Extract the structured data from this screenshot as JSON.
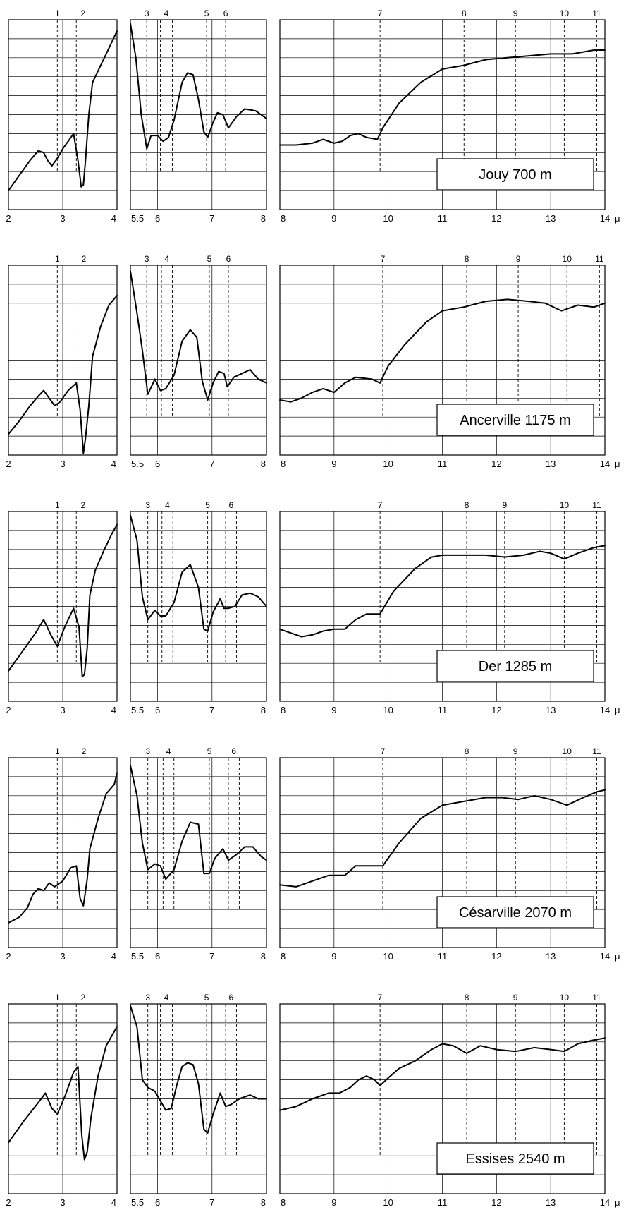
{
  "unit": "μ",
  "colors": {
    "ink": "#000000",
    "background": "#ffffff"
  },
  "chart_data": [
    {
      "type": "line",
      "title": "Jouy 700 m",
      "xlim": [
        2,
        14
      ],
      "ylim": [
        0,
        10
      ],
      "grid": true,
      "legend": "none",
      "band_markers": [
        {
          "label": "1",
          "x": 2.9
        },
        {
          "label": "2",
          "x": [
            3.25,
            3.5
          ]
        },
        {
          "label": "3",
          "x": 5.8
        },
        {
          "label": "4",
          "x": [
            6.05,
            6.27
          ]
        },
        {
          "label": "5",
          "x": 6.9
        },
        {
          "label": "6",
          "x": 7.25
        },
        {
          "label": "7",
          "x": 9.85
        },
        {
          "label": "8",
          "x": 11.4
        },
        {
          "label": "9",
          "x": 12.35
        },
        {
          "label": "10",
          "x": 13.25
        },
        {
          "label": "11",
          "x": 13.85
        }
      ],
      "series": [
        {
          "x": [
            2.0,
            2.2,
            2.4,
            2.55,
            2.65,
            2.72,
            2.8,
            2.9,
            3.0,
            3.1,
            3.2,
            3.28,
            3.34,
            3.38,
            3.42,
            3.48,
            3.55,
            3.7,
            3.85,
            4.0
          ],
          "y": [
            1.0,
            1.8,
            2.6,
            3.1,
            3.0,
            2.6,
            2.3,
            2.7,
            3.2,
            3.6,
            4.0,
            2.6,
            1.2,
            1.3,
            2.6,
            5.0,
            6.7,
            7.6,
            8.5,
            9.4
          ]
        },
        {
          "x": [
            5.5,
            5.6,
            5.7,
            5.8,
            5.88,
            6.0,
            6.1,
            6.2,
            6.3,
            6.45,
            6.55,
            6.65,
            6.75,
            6.85,
            6.92,
            7.02,
            7.1,
            7.2,
            7.3,
            7.45,
            7.6,
            7.8,
            8.0
          ],
          "y": [
            9.8,
            8.0,
            5.0,
            3.2,
            3.9,
            3.9,
            3.6,
            3.8,
            4.7,
            6.7,
            7.2,
            7.1,
            5.8,
            4.1,
            3.8,
            4.6,
            5.1,
            5.0,
            4.3,
            4.9,
            5.3,
            5.2,
            4.8
          ]
        },
        {
          "x": [
            8.0,
            8.3,
            8.6,
            8.8,
            9.0,
            9.15,
            9.3,
            9.45,
            9.6,
            9.8,
            9.9,
            10.2,
            10.6,
            11.0,
            11.4,
            11.8,
            12.2,
            12.6,
            13.0,
            13.4,
            13.8,
            14.0
          ],
          "y": [
            3.4,
            3.4,
            3.5,
            3.7,
            3.5,
            3.6,
            3.9,
            4.0,
            3.8,
            3.7,
            4.3,
            5.6,
            6.7,
            7.4,
            7.6,
            7.9,
            8.0,
            8.1,
            8.2,
            8.2,
            8.4,
            8.4
          ]
        }
      ]
    },
    {
      "type": "line",
      "title": "Ancerville 1175 m",
      "xlim": [
        2,
        14
      ],
      "ylim": [
        0,
        10
      ],
      "grid": true,
      "legend": "none",
      "band_markers": [
        {
          "label": "1",
          "x": 2.9
        },
        {
          "label": "2",
          "x": [
            3.28,
            3.5
          ]
        },
        {
          "label": "3",
          "x": 5.8
        },
        {
          "label": "4",
          "x": [
            6.07,
            6.27
          ]
        },
        {
          "label": "5",
          "x": 6.95
        },
        {
          "label": "6",
          "x": 7.3
        },
        {
          "label": "7",
          "x": 9.9
        },
        {
          "label": "8",
          "x": 11.45
        },
        {
          "label": "9",
          "x": 12.4
        },
        {
          "label": "10",
          "x": 13.3
        },
        {
          "label": "11",
          "x": 13.9
        }
      ],
      "series": [
        {
          "x": [
            2.0,
            2.2,
            2.4,
            2.55,
            2.65,
            2.75,
            2.85,
            2.95,
            3.1,
            3.25,
            3.32,
            3.38,
            3.42,
            3.48,
            3.55,
            3.7,
            3.85,
            4.0
          ],
          "y": [
            1.1,
            1.8,
            2.6,
            3.1,
            3.4,
            3.0,
            2.6,
            2.8,
            3.4,
            3.8,
            2.4,
            0.1,
            0.9,
            2.6,
            5.2,
            6.8,
            7.9,
            8.4
          ]
        },
        {
          "x": [
            5.5,
            5.62,
            5.72,
            5.82,
            5.95,
            6.05,
            6.15,
            6.3,
            6.45,
            6.6,
            6.72,
            6.82,
            6.92,
            7.02,
            7.12,
            7.22,
            7.28,
            7.4,
            7.55,
            7.7,
            7.85,
            8.0
          ],
          "y": [
            9.7,
            7.5,
            5.5,
            3.2,
            4.0,
            3.4,
            3.5,
            4.2,
            6.0,
            6.6,
            6.2,
            3.9,
            2.9,
            3.8,
            4.4,
            4.3,
            3.6,
            4.1,
            4.3,
            4.5,
            4.0,
            3.8
          ]
        },
        {
          "x": [
            8.0,
            8.2,
            8.4,
            8.6,
            8.8,
            9.0,
            9.2,
            9.4,
            9.7,
            9.85,
            10.0,
            10.3,
            10.7,
            11.0,
            11.4,
            11.8,
            12.2,
            12.6,
            12.9,
            13.2,
            13.5,
            13.8,
            14.0
          ],
          "y": [
            2.9,
            2.8,
            3.0,
            3.3,
            3.5,
            3.3,
            3.8,
            4.1,
            4.0,
            3.8,
            4.7,
            5.8,
            7.0,
            7.6,
            7.8,
            8.1,
            8.2,
            8.1,
            8.0,
            7.6,
            7.9,
            7.8,
            8.0
          ]
        }
      ]
    },
    {
      "type": "line",
      "title": "Der 1285 m",
      "xlim": [
        2,
        14
      ],
      "ylim": [
        0,
        10
      ],
      "grid": true,
      "legend": "none",
      "band_markers": [
        {
          "label": "1",
          "x": 2.9
        },
        {
          "label": "2",
          "x": [
            3.25,
            3.5
          ]
        },
        {
          "label": "3",
          "x": 5.82
        },
        {
          "label": "4",
          "x": [
            6.08,
            6.28
          ]
        },
        {
          "label": "5",
          "x": 6.92
        },
        {
          "label": "6",
          "x": [
            7.25,
            7.45
          ]
        },
        {
          "label": "7",
          "x": 9.85
        },
        {
          "label": "8",
          "x": 11.45
        },
        {
          "label": "9",
          "x": 12.15
        },
        {
          "label": "10",
          "x": 13.25
        },
        {
          "label": "11",
          "x": 13.85
        }
      ],
      "series": [
        {
          "x": [
            2.0,
            2.25,
            2.5,
            2.65,
            2.78,
            2.9,
            3.05,
            3.2,
            3.3,
            3.36,
            3.4,
            3.45,
            3.5,
            3.6,
            3.75,
            3.9,
            4.0
          ],
          "y": [
            1.6,
            2.6,
            3.6,
            4.3,
            3.5,
            2.9,
            4.0,
            4.9,
            3.9,
            1.3,
            1.4,
            2.8,
            5.6,
            6.9,
            7.9,
            8.8,
            9.3
          ]
        },
        {
          "x": [
            5.5,
            5.62,
            5.72,
            5.82,
            5.95,
            6.05,
            6.15,
            6.3,
            6.45,
            6.6,
            6.75,
            6.85,
            6.92,
            7.02,
            7.15,
            7.22,
            7.3,
            7.42,
            7.55,
            7.7,
            7.85,
            8.0
          ],
          "y": [
            9.8,
            8.5,
            5.5,
            4.3,
            4.8,
            4.5,
            4.5,
            5.2,
            6.8,
            7.2,
            6.0,
            3.8,
            3.7,
            4.7,
            5.4,
            4.9,
            4.9,
            5.0,
            5.6,
            5.7,
            5.5,
            5.0
          ]
        },
        {
          "x": [
            8.0,
            8.2,
            8.4,
            8.6,
            8.8,
            9.0,
            9.2,
            9.4,
            9.6,
            9.85,
            10.1,
            10.5,
            10.8,
            11.0,
            11.4,
            11.8,
            12.15,
            12.5,
            12.8,
            13.0,
            13.25,
            13.5,
            13.8,
            14.0
          ],
          "y": [
            3.8,
            3.6,
            3.4,
            3.5,
            3.7,
            3.8,
            3.8,
            4.3,
            4.6,
            4.6,
            5.8,
            7.0,
            7.6,
            7.7,
            7.7,
            7.7,
            7.6,
            7.7,
            7.9,
            7.8,
            7.5,
            7.8,
            8.1,
            8.2
          ]
        }
      ]
    },
    {
      "type": "line",
      "title": "Césarville 2070 m",
      "xlim": [
        2,
        14
      ],
      "ylim": [
        0,
        10
      ],
      "grid": true,
      "legend": "none",
      "band_markers": [
        {
          "label": "1",
          "x": 2.9
        },
        {
          "label": "2",
          "x": [
            3.28,
            3.5
          ]
        },
        {
          "label": "3",
          "x": 5.82
        },
        {
          "label": "4",
          "x": [
            6.1,
            6.3
          ]
        },
        {
          "label": "5",
          "x": 6.95
        },
        {
          "label": "6",
          "x": [
            7.3,
            7.5
          ]
        },
        {
          "label": "7",
          "x": 9.9
        },
        {
          "label": "8",
          "x": 11.45
        },
        {
          "label": "9",
          "x": 12.35
        },
        {
          "label": "10",
          "x": 13.3
        },
        {
          "label": "11",
          "x": 13.85
        }
      ],
      "series": [
        {
          "x": [
            2.0,
            2.2,
            2.35,
            2.45,
            2.55,
            2.65,
            2.75,
            2.85,
            3.0,
            3.15,
            3.25,
            3.32,
            3.38,
            3.45,
            3.5,
            3.65,
            3.8,
            3.95,
            4.0
          ],
          "y": [
            1.3,
            1.6,
            2.1,
            2.8,
            3.1,
            3.0,
            3.4,
            3.2,
            3.5,
            4.2,
            4.3,
            2.6,
            2.2,
            3.6,
            5.2,
            6.8,
            8.1,
            8.6,
            9.2
          ]
        },
        {
          "x": [
            5.5,
            5.62,
            5.72,
            5.82,
            5.95,
            6.05,
            6.15,
            6.3,
            6.45,
            6.6,
            6.75,
            6.85,
            6.95,
            7.05,
            7.2,
            7.3,
            7.45,
            7.6,
            7.75,
            7.9,
            8.0
          ],
          "y": [
            9.6,
            8.0,
            5.5,
            4.1,
            4.4,
            4.3,
            3.6,
            4.1,
            5.6,
            6.6,
            6.5,
            3.9,
            3.9,
            4.7,
            5.2,
            4.6,
            4.9,
            5.3,
            5.3,
            4.8,
            4.6
          ]
        },
        {
          "x": [
            8.0,
            8.3,
            8.6,
            8.9,
            9.2,
            9.4,
            9.7,
            9.9,
            10.2,
            10.6,
            11.0,
            11.4,
            11.8,
            12.1,
            12.4,
            12.7,
            13.0,
            13.3,
            13.6,
            13.85,
            14.0
          ],
          "y": [
            3.3,
            3.2,
            3.5,
            3.8,
            3.8,
            4.3,
            4.3,
            4.3,
            5.5,
            6.8,
            7.5,
            7.7,
            7.9,
            7.9,
            7.8,
            8.0,
            7.8,
            7.5,
            7.9,
            8.2,
            8.3
          ]
        }
      ]
    },
    {
      "type": "line",
      "title": "Essises 2540 m",
      "xlim": [
        2,
        14
      ],
      "ylim": [
        0,
        10
      ],
      "grid": true,
      "legend": "none",
      "band_markers": [
        {
          "label": "1",
          "x": 2.9
        },
        {
          "label": "2",
          "x": [
            3.25,
            3.5
          ]
        },
        {
          "label": "3",
          "x": 5.82
        },
        {
          "label": "4",
          "x": [
            6.05,
            6.27
          ]
        },
        {
          "label": "5",
          "x": 6.9
        },
        {
          "label": "6",
          "x": [
            7.25,
            7.45
          ]
        },
        {
          "label": "7",
          "x": 9.85
        },
        {
          "label": "8",
          "x": 11.45
        },
        {
          "label": "9",
          "x": 12.35
        },
        {
          "label": "10",
          "x": 13.25
        },
        {
          "label": "11",
          "x": 13.85
        }
      ],
      "series": [
        {
          "x": [
            2.0,
            2.3,
            2.55,
            2.68,
            2.8,
            2.9,
            3.05,
            3.2,
            3.28,
            3.35,
            3.4,
            3.45,
            3.52,
            3.65,
            3.8,
            4.0
          ],
          "y": [
            2.7,
            3.9,
            4.8,
            5.3,
            4.5,
            4.2,
            5.2,
            6.4,
            6.7,
            3.1,
            1.8,
            2.2,
            4.0,
            6.2,
            7.8,
            8.8
          ]
        },
        {
          "x": [
            5.5,
            5.62,
            5.72,
            5.82,
            5.95,
            6.05,
            6.15,
            6.25,
            6.35,
            6.45,
            6.55,
            6.65,
            6.75,
            6.85,
            6.92,
            7.02,
            7.15,
            7.25,
            7.35,
            7.5,
            7.7,
            7.85,
            8.0
          ],
          "y": [
            9.9,
            8.8,
            6.0,
            5.6,
            5.4,
            4.9,
            4.4,
            4.5,
            5.7,
            6.7,
            6.9,
            6.8,
            5.8,
            3.4,
            3.2,
            4.2,
            5.3,
            4.6,
            4.7,
            5.0,
            5.2,
            5.0,
            5.0
          ]
        },
        {
          "x": [
            8.0,
            8.3,
            8.6,
            8.9,
            9.1,
            9.3,
            9.45,
            9.6,
            9.75,
            9.85,
            10.0,
            10.2,
            10.5,
            10.8,
            11.0,
            11.2,
            11.45,
            11.7,
            12.0,
            12.35,
            12.7,
            13.0,
            13.25,
            13.5,
            13.8,
            14.0
          ],
          "y": [
            4.4,
            4.6,
            5.0,
            5.3,
            5.3,
            5.6,
            6.0,
            6.2,
            6.0,
            5.7,
            6.1,
            6.6,
            7.0,
            7.6,
            7.9,
            7.8,
            7.4,
            7.8,
            7.6,
            7.5,
            7.7,
            7.6,
            7.5,
            7.9,
            8.1,
            8.2
          ]
        }
      ]
    }
  ]
}
